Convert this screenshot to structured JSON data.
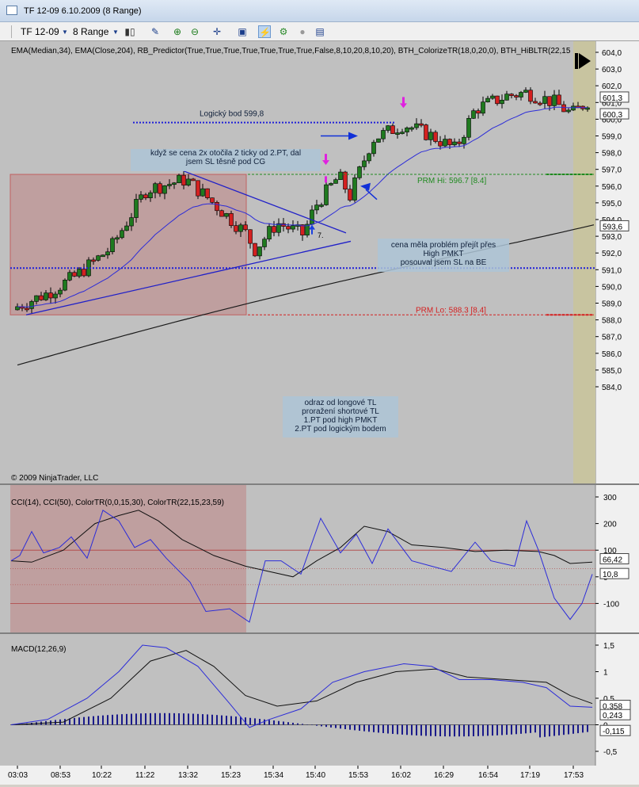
{
  "window": {
    "title": "TF 12-09  6.10.2009 (8 Range)"
  },
  "toolbar": {
    "instrument": "TF 12-09",
    "period": "8 Range"
  },
  "panels": {
    "price_indicators": "EMA(Median,34), EMA(Close,204), RB_Predictor(True,True,True,True,True,True,True,False,8,10,20,8,10,20), BTH_ColorizeTR(18,0,20,0), BTH_HiBLTR(22,15",
    "cci_label": "CCI(14), CCI(50), ColorTR(0,0,15,30), ColorTR(22,15,23,59)",
    "macd_label": "MACD(12,26,9)",
    "copyright": "© 2009 NinjaTrader, LLC"
  },
  "price_axis": {
    "ticks": [
      "604,0",
      "603,0",
      "602,0",
      "601,0",
      "600,0",
      "599,0",
      "598,0",
      "597,0",
      "596,0",
      "595,0",
      "594,0",
      "593,0",
      "592,0",
      "591,0",
      "590,0",
      "589,0",
      "588,0",
      "587,0",
      "586,0",
      "585,0",
      "584,0"
    ],
    "markers": [
      {
        "label": "601,3",
        "color": "#ffffff"
      },
      {
        "label": "600,3",
        "color": "#ffffff"
      },
      {
        "label": "593,6",
        "color": "#ffffff"
      }
    ]
  },
  "cci_axis": {
    "ticks": [
      "300",
      "200",
      "100",
      "0",
      "-100"
    ],
    "markers": [
      "66,42",
      "10,8"
    ]
  },
  "macd_axis": {
    "ticks": [
      "1,5",
      "1",
      "0,5",
      "0",
      "-0,5"
    ],
    "markers": [
      "0,358",
      "0,243",
      "-0,115"
    ]
  },
  "time_axis": [
    "03:03",
    "08:53",
    "10:22",
    "11:22",
    "13:32",
    "15:23",
    "15:34",
    "15:40",
    "15:53",
    "16:02",
    "16:29",
    "16:54",
    "17:19",
    "17:53"
  ],
  "levels": {
    "logical": "Logický bod 599,8",
    "prm_hi": "PRM Hi: 596.7 [8.4]",
    "prm_lo": "PRM Lo: 588.3 [8.4]"
  },
  "annotations": {
    "note1_l1": "když se cena 2x otočila 2 ticky od 2.PT, dal",
    "note1_l2": "jsem SL těsně pod CG",
    "note2_l1": "cena měla problém přejít přes",
    "note2_l2": "High PMKT",
    "note2_l3": "posouval jsem SL na BE",
    "note3_l1": "odraz od longové TL",
    "note3_l2": "proražení shortové TL",
    "note3_l3": "1.PT pod high PMKT",
    "note3_l4": "2.PT pod logickým bodem",
    "marker_7": "7."
  },
  "colors": {
    "up": "#1f7a1f",
    "down": "#d42020",
    "ema_fast": "#2c2cd8",
    "ema_slow": "#1a1a1a",
    "prm_hi": "#1f8a1f",
    "prm_lo": "#d42020",
    "logical": "#2020d8"
  }
}
